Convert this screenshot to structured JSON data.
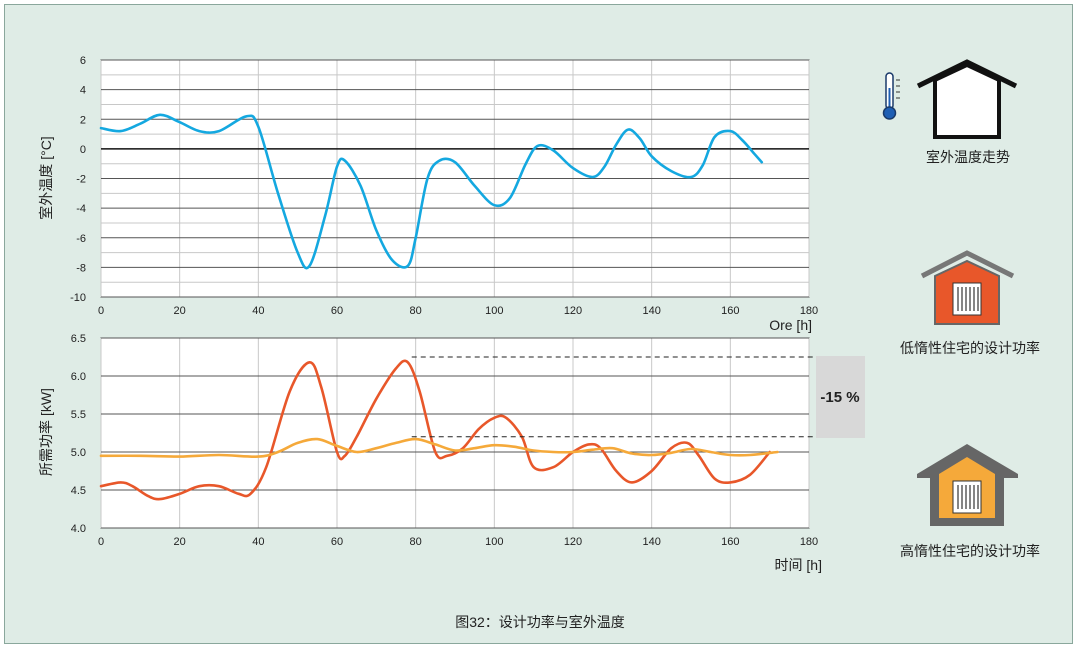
{
  "caption": "图32：设计功率与室外温度",
  "legend": {
    "outdoor": "室外温度走势",
    "low_inertia": "低惰性住宅的设计功率",
    "high_inertia": "高惰性住宅的设计功率"
  },
  "colors": {
    "background": "#dfece6",
    "temperature": "#14a8e0",
    "low_inertia": "#e8572a",
    "high_inertia": "#f5a93a"
  },
  "icons": [
    "thermometer-icon",
    "house-outline-icon",
    "house-radiator-orange-icon",
    "house-radiator-yellow-icon"
  ],
  "chart_data": [
    {
      "type": "line",
      "title": "",
      "xlabel": "Ore [h]",
      "ylabel": "室外温度 [°C]",
      "xlim": [
        0,
        180
      ],
      "ylim": [
        -10,
        6
      ],
      "xticks": [
        "0",
        "20",
        "40",
        "60",
        "80",
        "100",
        "120",
        "140",
        "160",
        "180"
      ],
      "yticks": [
        "6",
        "4",
        "2",
        "0",
        "-2",
        "-4",
        "-6",
        "-8",
        "-10"
      ],
      "grid": true,
      "series": [
        {
          "color": "#14a8e0",
          "x": [
            0,
            5,
            10,
            15,
            20,
            25,
            30,
            37,
            40,
            45,
            50,
            53,
            57,
            60,
            62,
            66,
            70,
            74,
            78,
            80,
            83,
            86,
            90,
            95,
            100,
            104,
            108,
            111,
            115,
            120,
            125,
            128,
            131,
            134,
            137,
            140,
            145,
            150,
            153,
            156,
            160,
            163,
            166,
            168
          ],
          "y": [
            1.4,
            1.2,
            1.7,
            2.3,
            1.8,
            1.2,
            1.2,
            2.2,
            1.5,
            -3,
            -7,
            -7.9,
            -4.5,
            -1.2,
            -0.8,
            -2.5,
            -5.5,
            -7.5,
            -7.9,
            -6,
            -2,
            -0.8,
            -0.9,
            -2.5,
            -3.8,
            -3.3,
            -1,
            0.2,
            -0.1,
            -1.3,
            -1.9,
            -1.2,
            0.3,
            1.3,
            0.7,
            -0.5,
            -1.5,
            -1.9,
            -1.1,
            0.8,
            1.2,
            0.6,
            -0.3,
            -0.9
          ]
        }
      ]
    },
    {
      "type": "line",
      "title": "",
      "xlabel": "时间 [h]",
      "ylabel": "所需功率 [kW]",
      "xlim": [
        0,
        180
      ],
      "ylim": [
        4.0,
        6.5
      ],
      "xticks": [
        "0",
        "20",
        "40",
        "60",
        "80",
        "100",
        "120",
        "140",
        "160",
        "180"
      ],
      "yticks": [
        "6.5",
        "6.0",
        "5.5",
        "5.0",
        "4.5",
        "4.0"
      ],
      "grid": true,
      "annotation": {
        "text": "-15 %",
        "upper": 6.25,
        "lower": 5.2,
        "x_start": 79
      },
      "series": [
        {
          "color": "#e8572a",
          "x": [
            0,
            5,
            8,
            12,
            15,
            20,
            25,
            30,
            35,
            38,
            42,
            48,
            53,
            56,
            60,
            62,
            65,
            70,
            75,
            78,
            81,
            85,
            88,
            92,
            96,
            100,
            103,
            107,
            110,
            115,
            120,
            124,
            127,
            131,
            135,
            140,
            145,
            149,
            152,
            156,
            160,
            165,
            170
          ],
          "y": [
            4.55,
            4.6,
            4.55,
            4.42,
            4.38,
            4.45,
            4.55,
            4.55,
            4.45,
            4.45,
            4.8,
            5.8,
            6.18,
            5.85,
            5.0,
            4.95,
            5.2,
            5.7,
            6.1,
            6.18,
            5.8,
            5.0,
            4.95,
            5.05,
            5.3,
            5.45,
            5.45,
            5.2,
            4.8,
            4.8,
            5.0,
            5.1,
            5.05,
            4.75,
            4.6,
            4.75,
            5.05,
            5.12,
            4.95,
            4.65,
            4.6,
            4.7,
            5.0
          ]
        },
        {
          "color": "#f5a93a",
          "x": [
            0,
            10,
            20,
            30,
            40,
            45,
            50,
            55,
            60,
            65,
            70,
            75,
            80,
            85,
            90,
            95,
            100,
            105,
            110,
            115,
            120,
            125,
            130,
            135,
            140,
            145,
            150,
            155,
            160,
            165,
            172
          ],
          "y": [
            4.95,
            4.95,
            4.94,
            4.96,
            4.94,
            5.0,
            5.12,
            5.17,
            5.08,
            5.0,
            5.05,
            5.12,
            5.17,
            5.1,
            5.02,
            5.05,
            5.09,
            5.07,
            5.02,
            5.0,
            5.0,
            5.03,
            5.05,
            4.98,
            4.96,
            4.99,
            5.04,
            5.0,
            4.96,
            4.96,
            5.0
          ]
        }
      ]
    }
  ]
}
